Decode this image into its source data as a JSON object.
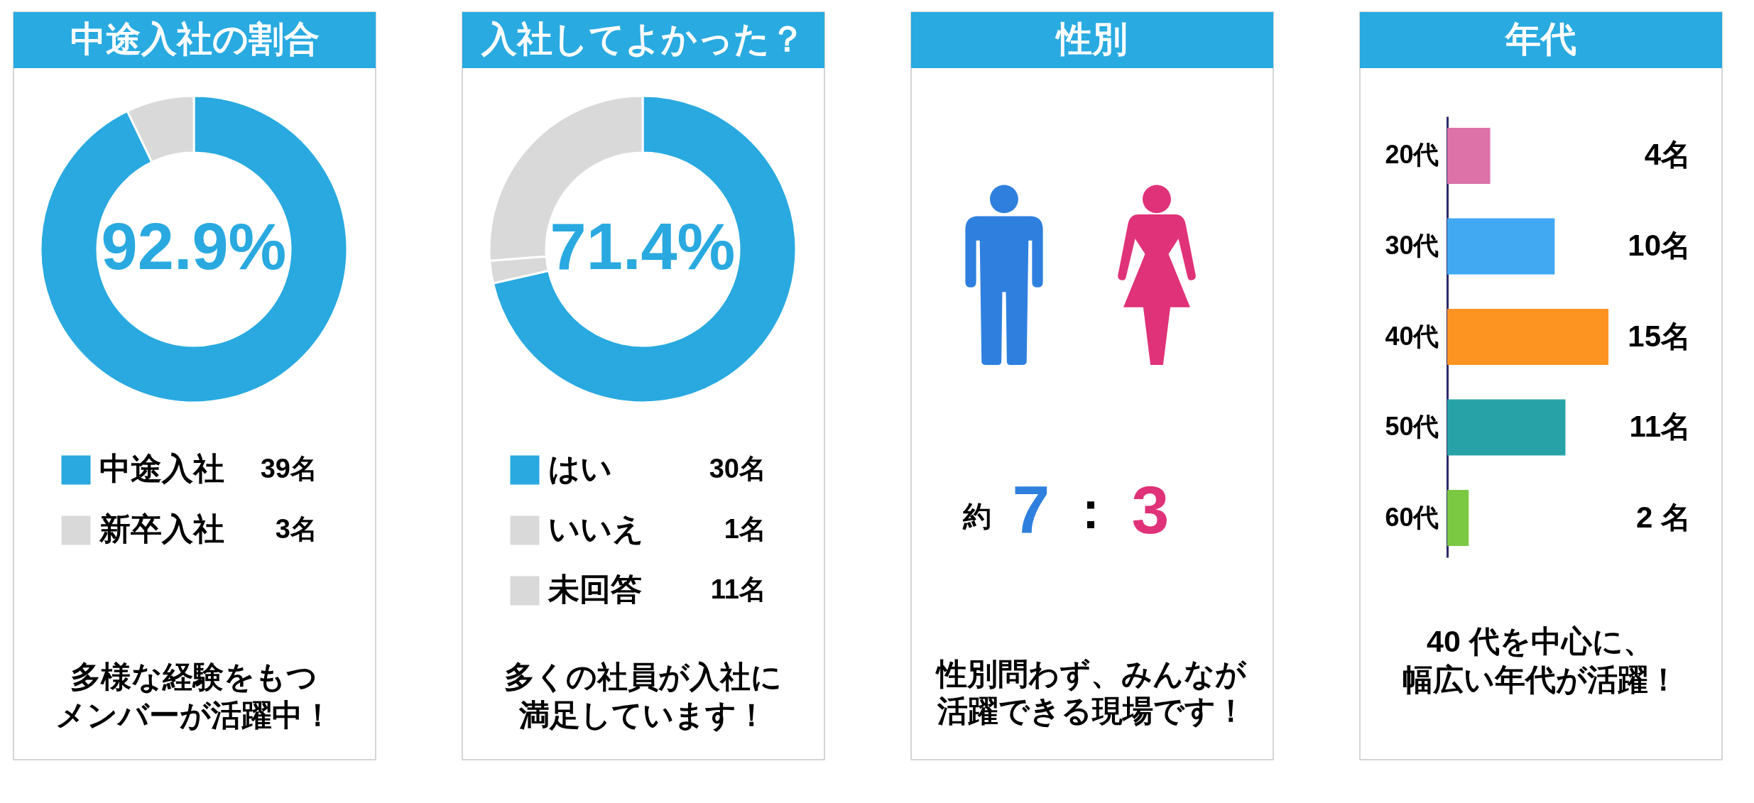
{
  "chart_data": [
    {
      "type": "donut",
      "title": "中途入社の割合",
      "categories": [
        "中途入社",
        "新卒入社"
      ],
      "values": [
        39,
        3
      ],
      "colors": [
        "#29a9e0",
        "#d9d9d9"
      ],
      "value_labels": [
        "39名",
        "3名"
      ],
      "legend": "bottom",
      "annotations": [
        "92.9%",
        "多様な経験をもつ",
        "メンバーが活躍中！"
      ]
    },
    {
      "type": "donut",
      "title": "入社してよかった？",
      "categories": [
        "はい",
        "いいえ",
        "未回答"
      ],
      "values": [
        30,
        1,
        11
      ],
      "colors": [
        "#29a9e0",
        "#d9d9d9",
        "#d9d9d9"
      ],
      "value_labels": [
        "30名",
        "1名",
        "11名"
      ],
      "legend": "bottom",
      "annotations": [
        "71.4%",
        "多くの社員が入社に",
        "満足しています！"
      ]
    },
    {
      "type": "other",
      "title": "性別",
      "values": [
        7,
        3
      ],
      "colors": [
        "#2f80de",
        "#e03278"
      ],
      "data_labels": true,
      "annotations": [
        "約",
        "：",
        "性別問わず、みんなが",
        "活躍できる現場です！"
      ]
    },
    {
      "type": "bar",
      "orientation": "horizontal",
      "title": "年代",
      "categories": [
        "20代",
        "30代",
        "40代",
        "50代",
        "60代"
      ],
      "values": [
        4,
        10,
        15,
        11,
        2
      ],
      "colors": [
        "#dc72a8",
        "#41a8f2",
        "#fd9321",
        "#27a3a8",
        "#7bc843"
      ],
      "value_labels": [
        "4名",
        "10名",
        "15名",
        "11名",
        "2 名"
      ],
      "tick_labels": "y",
      "annotations": [
        "40 代を中心に、",
        "幅広い年代が活躍！"
      ]
    }
  ]
}
